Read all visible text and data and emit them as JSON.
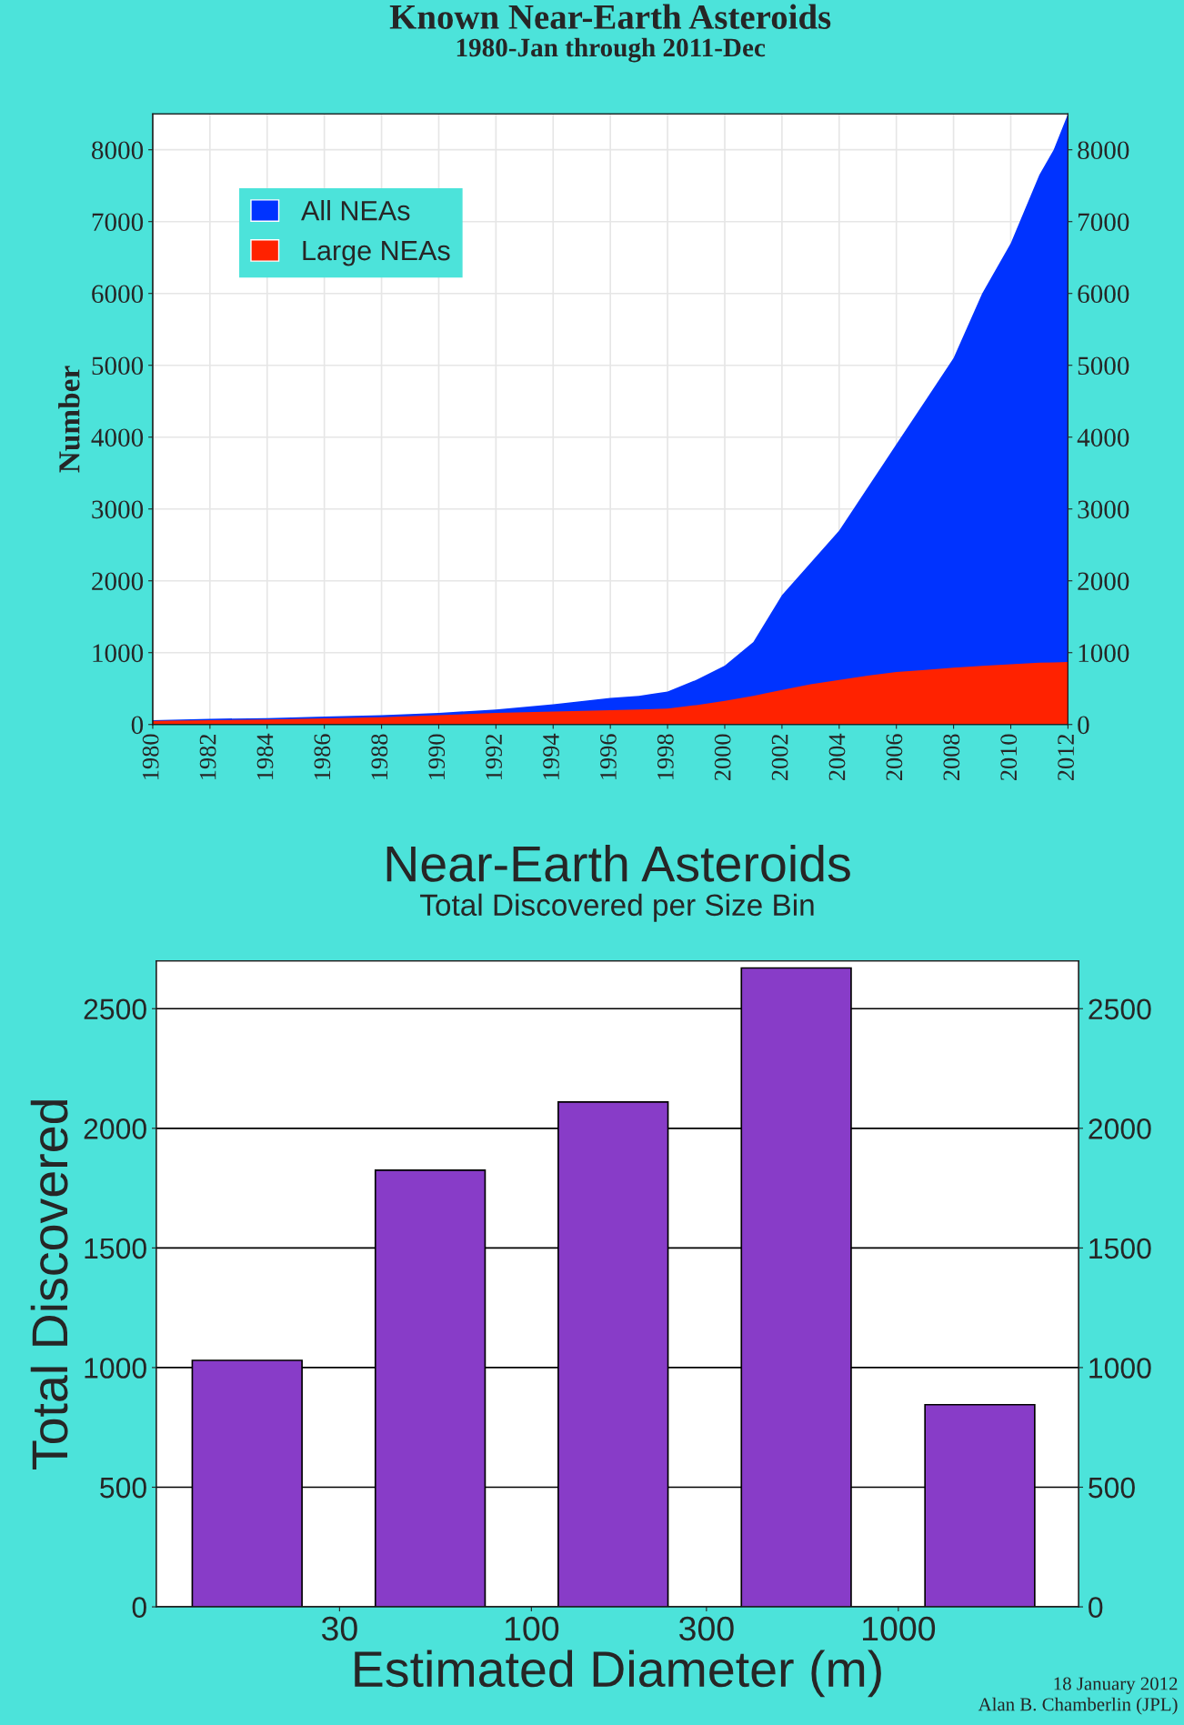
{
  "chart_data": [
    {
      "type": "area",
      "title": "Known Near-Earth Asteroids",
      "subtitle": "1980-Jan through 2011-Dec",
      "ylabel": "Number",
      "x": [
        1980,
        1982,
        1984,
        1986,
        1988,
        1990,
        1992,
        1994,
        1996,
        1997,
        1998,
        1999,
        2000,
        2001,
        2002,
        2003,
        2004,
        2005,
        2006,
        2007,
        2008,
        2009,
        2010,
        2011,
        2011.5,
        2012
      ],
      "series": [
        {
          "name": "All NEAs",
          "color": "#0033ff",
          "values": [
            60,
            80,
            90,
            110,
            130,
            160,
            210,
            280,
            370,
            400,
            460,
            620,
            820,
            1150,
            1800,
            2250,
            2700,
            3300,
            3900,
            4500,
            5100,
            6000,
            6700,
            7650,
            8000,
            8500
          ]
        },
        {
          "name": "Large NEAs",
          "color": "#ff2200",
          "values": [
            50,
            60,
            70,
            85,
            100,
            130,
            160,
            180,
            200,
            210,
            220,
            270,
            330,
            400,
            480,
            560,
            620,
            680,
            730,
            760,
            790,
            815,
            840,
            860,
            865,
            870
          ]
        }
      ],
      "xlim": [
        1980,
        2012
      ],
      "xticks": [
        1980,
        1982,
        1984,
        1986,
        1988,
        1990,
        1992,
        1994,
        1996,
        1998,
        2000,
        2002,
        2004,
        2006,
        2008,
        2010,
        2012
      ],
      "ylim": [
        0,
        8500
      ],
      "yticks": [
        0,
        1000,
        2000,
        3000,
        4000,
        5000,
        6000,
        7000,
        8000
      ],
      "y2lim": [
        0,
        8500
      ],
      "y2ticks": [
        0,
        1000,
        2000,
        3000,
        4000,
        5000,
        6000,
        7000,
        8000
      ],
      "grid": true,
      "legend": "top left"
    },
    {
      "type": "bar",
      "title": "Near-Earth Asteroids",
      "subtitle": "Total Discovered per Size Bin",
      "xlabel": "Estimated Diameter (m)",
      "ylabel": "Total Discovered",
      "x": [
        16.8,
        53,
        167,
        527,
        1668
      ],
      "values": [
        1030,
        1825,
        2110,
        2670,
        845
      ],
      "color": "#883cc8",
      "log": "x",
      "xlim": [
        9.5,
        3100
      ],
      "xticks": [
        30,
        100,
        300,
        1000
      ],
      "ylim": [
        0,
        2700
      ],
      "yticks": [
        0,
        500,
        1000,
        1500,
        2000,
        2500
      ],
      "y2lim": [
        0,
        2700
      ],
      "y2ticks": [
        0,
        500,
        1000,
        1500,
        2000,
        2500
      ],
      "grid": "y",
      "annotations": [
        "18 January 2012",
        "Alan B. Chamberlin (JPL)"
      ]
    }
  ]
}
